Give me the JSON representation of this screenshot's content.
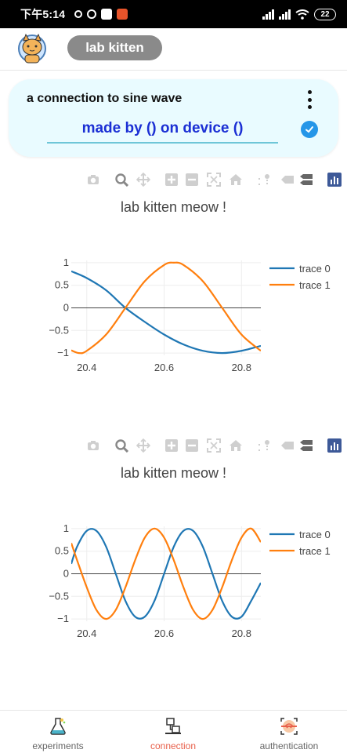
{
  "status_bar": {
    "time": "下午5:14",
    "battery": "22"
  },
  "header": {
    "app_title": "lab kitten"
  },
  "connection_card": {
    "title": "a connection to sine wave",
    "subtitle": "made by () on device ()"
  },
  "modebar_icons": [
    "camera-icon",
    "zoom-icon",
    "pan-icon",
    "zoom-in-icon",
    "zoom-out-icon",
    "autoscale-icon",
    "home-icon",
    "spike-lines-icon",
    "hover-closest-icon",
    "hover-compare-icon",
    "plotly-logo-icon"
  ],
  "colors": {
    "trace0": "#1f77b4",
    "trace1": "#ff7f0e",
    "card_bg": "#e9fbff",
    "subtitle": "#1b2fd4",
    "active_nav": "#e8604b"
  },
  "chart_data": [
    {
      "type": "line",
      "title": "lab kitten meow !",
      "xlim": [
        20.36,
        20.85
      ],
      "ylim": [
        -1.05,
        1.05
      ],
      "x_ticks": [
        "20.4",
        "20.6",
        "20.8"
      ],
      "x_tick_values": [
        20.4,
        20.6,
        20.8
      ],
      "y_ticks": [
        "1",
        "0.5",
        "0",
        "−0.5",
        "−1"
      ],
      "y_tick_values": [
        1,
        0.5,
        0,
        -0.5,
        -1
      ],
      "legend_placement": "top-right",
      "series": [
        {
          "name": "trace 0",
          "x": [
            20.36,
            20.4,
            20.45,
            20.5,
            20.55,
            20.6,
            20.65,
            20.7,
            20.75,
            20.8,
            20.85
          ],
          "y": [
            0.81,
            0.66,
            0.39,
            0.0,
            -0.31,
            -0.59,
            -0.81,
            -0.95,
            -1.0,
            -0.95,
            -0.84
          ]
        },
        {
          "name": "trace 1",
          "x": [
            20.36,
            20.38,
            20.4,
            20.45,
            20.5,
            20.55,
            20.6,
            20.625,
            20.65,
            20.7,
            20.75,
            20.8,
            20.85
          ],
          "y": [
            -0.94,
            -1.0,
            -0.95,
            -0.59,
            0.0,
            0.59,
            0.95,
            1.0,
            0.95,
            0.59,
            0.0,
            -0.59,
            -0.95
          ]
        }
      ]
    },
    {
      "type": "line",
      "title": "lab kitten meow !",
      "xlim": [
        20.36,
        20.85
      ],
      "ylim": [
        -1.05,
        1.05
      ],
      "x_ticks": [
        "20.4",
        "20.6",
        "20.8"
      ],
      "x_tick_values": [
        20.4,
        20.6,
        20.8
      ],
      "y_ticks": [
        "1",
        "0.5",
        "0",
        "−0.5",
        "−1"
      ],
      "y_tick_values": [
        1,
        0.5,
        0,
        -0.5,
        -1
      ],
      "legend_placement": "top-right",
      "series": [
        {
          "name": "trace 0",
          "x": [
            20.36,
            20.375,
            20.4,
            20.425,
            20.45,
            20.475,
            20.5,
            20.525,
            20.55,
            20.575,
            20.6,
            20.625,
            20.65,
            20.675,
            20.7,
            20.725,
            20.75,
            20.775,
            20.8,
            20.825,
            20.85
          ],
          "y": [
            0.22,
            0.6,
            0.95,
            0.95,
            0.6,
            0.0,
            -0.6,
            -0.95,
            -0.95,
            -0.6,
            0.0,
            0.6,
            0.95,
            0.95,
            0.6,
            0.0,
            -0.6,
            -0.95,
            -0.95,
            -0.6,
            -0.2
          ]
        },
        {
          "name": "trace 1",
          "x": [
            20.36,
            20.375,
            20.4,
            20.425,
            20.45,
            20.475,
            20.5,
            20.525,
            20.55,
            20.575,
            20.6,
            20.625,
            20.65,
            20.675,
            20.7,
            20.725,
            20.75,
            20.775,
            20.8,
            20.825,
            20.85
          ],
          "y": [
            0.68,
            0.3,
            -0.3,
            -0.8,
            -1.0,
            -0.8,
            -0.3,
            0.3,
            0.8,
            1.0,
            0.8,
            0.3,
            -0.3,
            -0.8,
            -1.0,
            -0.8,
            -0.3,
            0.3,
            0.8,
            1.0,
            0.7
          ]
        }
      ]
    }
  ],
  "bottom_nav": {
    "items": [
      {
        "label": "experiments",
        "icon": "flask-icon"
      },
      {
        "label": "connection",
        "icon": "network-icon"
      },
      {
        "label": "authentication",
        "icon": "fingerprint-icon"
      }
    ],
    "active_index": 1
  }
}
